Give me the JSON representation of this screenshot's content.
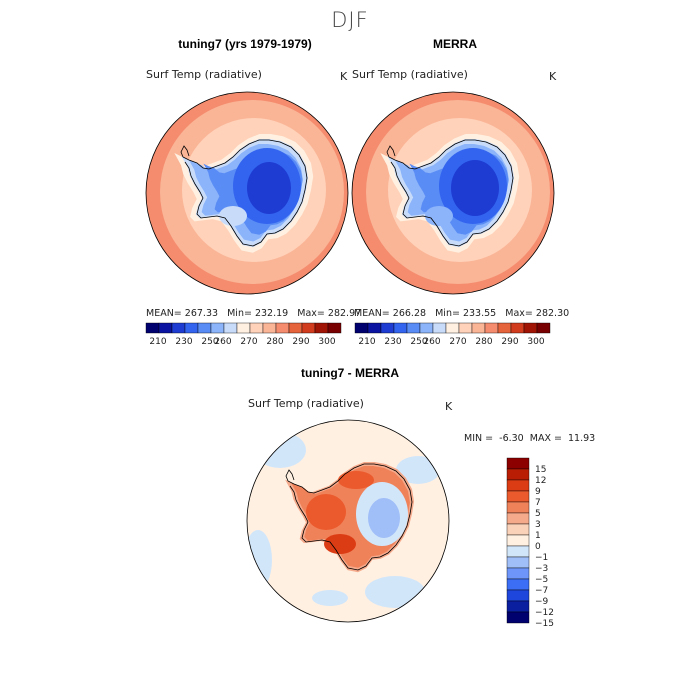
{
  "figure": {
    "title": "DJF"
  },
  "panels": [
    {
      "title": "tuning7 (yrs 1979-1979)",
      "variable": "Surf Temp (radiative)",
      "units": "K",
      "mean_label": "MEAN=",
      "mean": "267.33",
      "min_label": "Min=",
      "min": "232.19",
      "max_label": "Max=",
      "max": "282.97"
    },
    {
      "title": "MERRA",
      "variable": "Surf Temp (radiative)",
      "units": "K",
      "mean_label": "MEAN=",
      "mean": "266.28",
      "min_label": "Min=",
      "min": "233.55",
      "max_label": "Max=",
      "max": "282.30"
    }
  ],
  "diff_panel": {
    "title": "tuning7 - MERRA",
    "variable": "Surf Temp (radiative)",
    "units": "K",
    "min_label": "MIN =",
    "min": "-6.30",
    "max_label": "MAX =",
    "max": "11.93"
  },
  "temp_colorbar": {
    "colors": [
      "#00006e",
      "#0a14a0",
      "#1e3cd2",
      "#3264f0",
      "#5a8cf5",
      "#8cb4fa",
      "#c8dcfa",
      "#fff0e1",
      "#ffd2b9",
      "#fab496",
      "#f58c6e",
      "#e6643c",
      "#d23c1e",
      "#a01405",
      "#780000"
    ],
    "ticks": [
      "210",
      "230",
      "250",
      "260",
      "270",
      "280",
      "290",
      "300"
    ]
  },
  "diff_colorbar": {
    "colors": [
      "#00006e",
      "#0a1ea0",
      "#1e46dc",
      "#3c6ef5",
      "#6e96fa",
      "#a0bef8",
      "#d2e6fa",
      "#fff0e1",
      "#fad2b9",
      "#f5aa8c",
      "#f0825a",
      "#eb5a2d",
      "#dc3c14",
      "#b91e05",
      "#8c0000"
    ],
    "ticks": [
      "15",
      "12",
      "9",
      "7",
      "5",
      "3",
      "1",
      "0",
      "−1",
      "−3",
      "−5",
      "−7",
      "−9",
      "−12",
      "−15"
    ]
  }
}
